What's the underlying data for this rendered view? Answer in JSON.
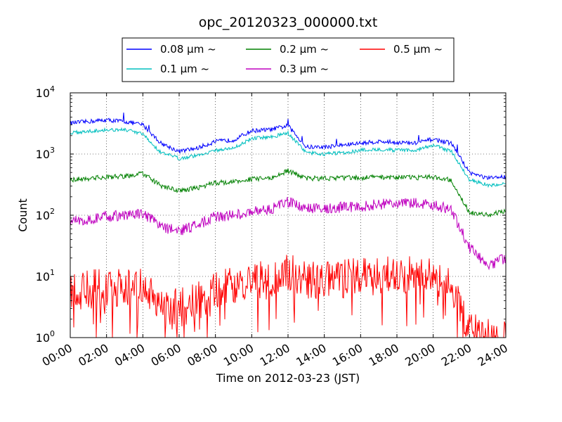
{
  "chart_data": {
    "type": "line",
    "title": "opc_20120323_000000.txt",
    "xlabel": "Time on 2012-03-23 (JST)",
    "ylabel": "Count",
    "yscale": "log",
    "ylim": [
      1,
      10000
    ],
    "xlim_hours": [
      0,
      24
    ],
    "x_tick_labels": [
      "00:00",
      "02:00",
      "04:00",
      "06:00",
      "08:00",
      "10:00",
      "12:00",
      "14:00",
      "16:00",
      "18:00",
      "20:00",
      "22:00",
      "24:00"
    ],
    "y_tick_labels": [
      {
        "base": "10",
        "exp": "0"
      },
      {
        "base": "10",
        "exp": "1"
      },
      {
        "base": "10",
        "exp": "2"
      },
      {
        "base": "10",
        "exp": "3"
      },
      {
        "base": "10",
        "exp": "4"
      }
    ],
    "grid": true,
    "legend_position": "top-center",
    "x_hours": [
      0,
      1,
      2,
      3,
      4,
      5,
      6,
      7,
      8,
      9,
      10,
      11,
      12,
      13,
      14,
      15,
      16,
      17,
      18,
      19,
      20,
      21,
      22,
      23,
      24
    ],
    "series": [
      {
        "name": "0.08 μm ~",
        "color": "#0000ff",
        "values": [
          3200,
          3400,
          3600,
          3400,
          3000,
          1500,
          1100,
          1250,
          1600,
          1700,
          2400,
          2500,
          2900,
          1300,
          1300,
          1400,
          1500,
          1600,
          1550,
          1500,
          1750,
          1500,
          500,
          400,
          430
        ]
      },
      {
        "name": "0.1 μm ~",
        "color": "#00bfbf",
        "values": [
          2200,
          2350,
          2500,
          2500,
          2100,
          1050,
          850,
          950,
          1150,
          1250,
          1800,
          1900,
          2200,
          1050,
          1000,
          1050,
          1150,
          1200,
          1150,
          1150,
          1400,
          1100,
          380,
          310,
          320
        ]
      },
      {
        "name": "0.2 μm ~",
        "color": "#008000",
        "values": [
          380,
          400,
          420,
          430,
          480,
          300,
          250,
          280,
          340,
          350,
          390,
          400,
          530,
          400,
          400,
          410,
          410,
          420,
          420,
          410,
          420,
          380,
          110,
          100,
          120
        ]
      },
      {
        "name": "0.3 μm ~",
        "color": "#bf00bf",
        "values": [
          80,
          85,
          95,
          100,
          105,
          65,
          55,
          70,
          95,
          100,
          115,
          125,
          165,
          130,
          130,
          135,
          140,
          150,
          160,
          155,
          150,
          120,
          30,
          15,
          20
        ]
      },
      {
        "name": "0.5 μm ~",
        "color": "#ff0000",
        "values": [
          6,
          6,
          7,
          6,
          7,
          3.5,
          3,
          4,
          6,
          7,
          8,
          9,
          12,
          9,
          9,
          9,
          10,
          10,
          11,
          11,
          10,
          6,
          1.5,
          1,
          1
        ]
      }
    ]
  }
}
